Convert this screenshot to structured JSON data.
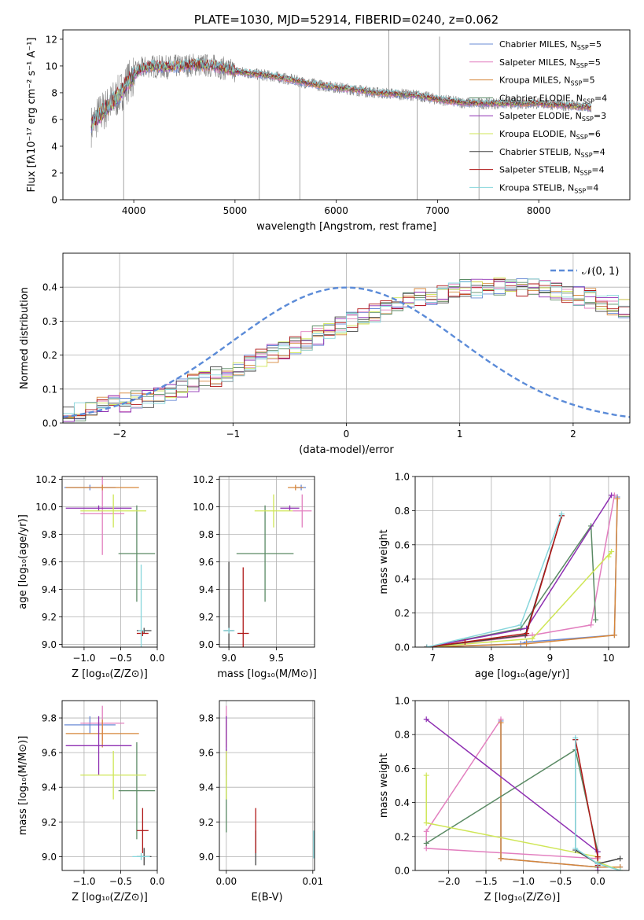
{
  "colors": {
    "Chabrier MILES": "#6a8bd6",
    "Salpeter MILES": "#e27fbf",
    "Kroupa MILES": "#d6863a",
    "Chabrier ELODIE": "#5a8a64",
    "Salpeter ELODIE": "#8e2fb2",
    "Kroupa ELODIE": "#cfe656",
    "Chabrier STELIB": "#444444",
    "Salpeter STELIB": "#b01818",
    "Kroupa STELIB": "#86d6dc"
  },
  "chart_data": [
    {
      "id": "spectrum",
      "type": "line",
      "title": "PLATE=1030, MJD=52914, FIBERID=0240, z=0.062",
      "xlabel": "wavelength [Angstrom, rest frame]",
      "ylabel": "Flux [fλ10⁻¹⁷ erg cm⁻² s⁻¹ A⁻¹]",
      "xlim": [
        3300,
        8900
      ],
      "ylim": [
        0,
        12.7
      ],
      "xticks": [
        4000,
        5000,
        6000,
        7000,
        8000
      ],
      "yticks": [
        0,
        2,
        4,
        6,
        8,
        10,
        12
      ],
      "grid": false,
      "legend_position": "top-right",
      "legend": [
        {
          "name": "Chabrier MILES",
          "label": "Chabrier MILES, N",
          "sub": "SSP",
          "n": "=5"
        },
        {
          "name": "Salpeter MILES",
          "label": "Salpeter MILES, N",
          "sub": "SSP",
          "n": "=5"
        },
        {
          "name": "Kroupa MILES",
          "label": "Kroupa MILES, N",
          "sub": "SSP",
          "n": "=5"
        },
        {
          "name": "Chabrier ELODIE",
          "label": "Chabrier ELODIE, N",
          "sub": "SSP",
          "n": "=4"
        },
        {
          "name": "Salpeter ELODIE",
          "label": "Salpeter ELODIE, N",
          "sub": "SSP",
          "n": "=3"
        },
        {
          "name": "Kroupa ELODIE",
          "label": "Kroupa ELODIE, N",
          "sub": "SSP",
          "n": "=6"
        },
        {
          "name": "Chabrier STELIB",
          "label": "Chabrier STELIB, N",
          "sub": "SSP",
          "n": "=4"
        },
        {
          "name": "Salpeter STELIB",
          "label": "Salpeter STELIB, N",
          "sub": "SSP",
          "n": "=4"
        },
        {
          "name": "Kroupa STELIB",
          "label": "Kroupa STELIB, N",
          "sub": "SSP",
          "n": "=4"
        }
      ],
      "data_continuum": {
        "x": [
          3580,
          3650,
          3750,
          3850,
          3950,
          4050,
          4150,
          4300,
          4450,
          4600,
          4800,
          5000,
          5200,
          5400,
          5600,
          5800,
          6000,
          6200,
          6400,
          6600,
          6800,
          7000,
          7200,
          7400,
          7600,
          7800,
          8000,
          8200,
          8400,
          8520
        ],
        "y": [
          5.5,
          6.3,
          7.0,
          7.8,
          8.9,
          9.7,
          10.0,
          9.9,
          10.0,
          10.1,
          10.0,
          9.6,
          9.4,
          9.2,
          8.9,
          8.6,
          8.4,
          8.2,
          8.0,
          7.9,
          7.8,
          7.5,
          7.3,
          7.2,
          7.2,
          7.2,
          7.2,
          7.1,
          6.95,
          6.9
        ]
      },
      "data_spikes": [
        {
          "x": 3900,
          "y": 0.0
        },
        {
          "x": 5240,
          "y": 0.0
        },
        {
          "x": 5640,
          "y": 0.0
        },
        {
          "x": 6520,
          "y": 12.7
        },
        {
          "x": 6800,
          "y": 0.0
        },
        {
          "x": 7020,
          "y": 12.2
        },
        {
          "x": 7410,
          "y": 0.0
        }
      ]
    },
    {
      "id": "residuals",
      "type": "step",
      "xlabel": "(data-model)/error",
      "ylabel": "Normed distribution",
      "xlim": [
        -2.5,
        2.5
      ],
      "ylim": [
        0,
        0.5
      ],
      "xticks": [
        -2,
        -1,
        0,
        1,
        2
      ],
      "yticks": [
        0.0,
        0.1,
        0.2,
        0.3,
        0.4
      ],
      "grid": true,
      "legend_position": "top-right",
      "legend": [
        "𝒩(0, 1)"
      ],
      "gaussian": {
        "mean": 0,
        "sigma": 1
      },
      "bin_edges_start": -2.5,
      "bin_width": 0.1,
      "base_profile": [
        0.032,
        0.036,
        0.041,
        0.047,
        0.053,
        0.06,
        0.067,
        0.075,
        0.084,
        0.093,
        0.103,
        0.114,
        0.125,
        0.137,
        0.149,
        0.162,
        0.175,
        0.188,
        0.202,
        0.216,
        0.23,
        0.244,
        0.258,
        0.272,
        0.286,
        0.299,
        0.312,
        0.325,
        0.337,
        0.348,
        0.358,
        0.367,
        0.375,
        0.382,
        0.388,
        0.393,
        0.396,
        0.398,
        0.399,
        0.399,
        0.398,
        0.396,
        0.393,
        0.388,
        0.382,
        0.375,
        0.367,
        0.358,
        0.348,
        0.337,
        0.325,
        0.312,
        0.299,
        0.286,
        0.272,
        0.258,
        0.244,
        0.23,
        0.216,
        0.202,
        0.188,
        0.175,
        0.162,
        0.149,
        0.137,
        0.125,
        0.114,
        0.103,
        0.093,
        0.084,
        0.075,
        0.067,
        0.06,
        0.053,
        0.047,
        0.041,
        0.036,
        0.032,
        0.029,
        0.027
      ]
    },
    {
      "id": "age-vs-Z",
      "type": "errorbar",
      "xlabel": "Z [log₁₀(Z/Z⊙)]",
      "ylabel": "age  [log₁₀(age/yr)]",
      "xlim": [
        -1.3,
        0.0
      ],
      "ylim": [
        8.98,
        10.22
      ],
      "xticks": [
        -1.0,
        -0.5,
        0.0
      ],
      "xticklabels": [
        "−1.0",
        "−0.5",
        "0.0"
      ],
      "yticks": [
        9.0,
        9.2,
        9.4,
        9.6,
        9.8,
        10.0,
        10.2
      ],
      "grid": true,
      "points": [
        {
          "series": "Chabrier MILES",
          "x": -0.92,
          "y": 10.14,
          "xerr": 0.35,
          "yerr": 0.02
        },
        {
          "series": "Salpeter MILES",
          "x": -0.75,
          "y": 9.95,
          "xerr": 0.3,
          "yerr": 0.3
        },
        {
          "series": "Kroupa MILES",
          "x": -0.75,
          "y": 10.14,
          "xerr": 0.5,
          "yerr": 0.02
        },
        {
          "series": "Chabrier ELODIE",
          "x": -0.28,
          "y": 9.66,
          "xerr": 0.25,
          "yerr": 0.35
        },
        {
          "series": "Salpeter ELODIE",
          "x": -0.8,
          "y": 9.99,
          "xerr": 0.45,
          "yerr": 0.02
        },
        {
          "series": "Kroupa ELODIE",
          "x": -0.6,
          "y": 9.97,
          "xerr": 0.45,
          "yerr": 0.12
        },
        {
          "series": "Chabrier STELIB",
          "x": -0.18,
          "y": 9.1,
          "xerr": 0.1,
          "yerr": 0.02
        },
        {
          "series": "Salpeter STELIB",
          "x": -0.2,
          "y": 9.08,
          "xerr": 0.08,
          "yerr": 0.02
        },
        {
          "series": "Kroupa STELIB",
          "x": -0.22,
          "y": 9.1,
          "xerr": 0.04,
          "yerr": 0.48
        }
      ]
    },
    {
      "id": "age-vs-mass",
      "type": "errorbar",
      "xlabel": "mass [log₁₀(M/M⊙)]",
      "ylabel": "",
      "xlim": [
        8.9,
        9.9
      ],
      "ylim": [
        8.98,
        10.22
      ],
      "xticks": [
        9.0,
        9.5
      ],
      "yticks": [
        9.0,
        9.2,
        9.4,
        9.6,
        9.8,
        10.0,
        10.2
      ],
      "grid": true,
      "points": [
        {
          "series": "Chabrier MILES",
          "x": 9.76,
          "y": 10.14,
          "xerr": 0.05,
          "yerr": 0.02
        },
        {
          "series": "Salpeter MILES",
          "x": 9.77,
          "y": 9.97,
          "xerr": 0.1,
          "yerr": 0.12
        },
        {
          "series": "Kroupa MILES",
          "x": 9.7,
          "y": 10.14,
          "xerr": 0.08,
          "yerr": 0.02
        },
        {
          "series": "Chabrier ELODIE",
          "x": 9.38,
          "y": 9.66,
          "xerr": 0.3,
          "yerr": 0.35
        },
        {
          "series": "Salpeter ELODIE",
          "x": 9.64,
          "y": 9.99,
          "xerr": 0.1,
          "yerr": 0.02
        },
        {
          "series": "Kroupa ELODIE",
          "x": 9.47,
          "y": 9.97,
          "xerr": 0.2,
          "yerr": 0.12
        },
        {
          "series": "Chabrier STELIB",
          "x": 9.0,
          "y": 9.1,
          "xerr": 0.05,
          "yerr": 0.5
        },
        {
          "series": "Salpeter STELIB",
          "x": 9.15,
          "y": 9.08,
          "xerr": 0.06,
          "yerr": 0.48
        },
        {
          "series": "Kroupa STELIB",
          "x": 9.0,
          "y": 9.1,
          "xerr": 0.06,
          "yerr": 0.02
        }
      ]
    },
    {
      "id": "mass-weight-vs-age",
      "type": "line",
      "xlabel": "age  [log₁₀(age/yr)]",
      "ylabel": "mass weight",
      "xlim": [
        6.7,
        10.35
      ],
      "ylim": [
        0.0,
        1.0
      ],
      "xticks": [
        7,
        8,
        9,
        10
      ],
      "yticks": [
        0.0,
        0.2,
        0.4,
        0.6,
        0.8,
        1.0
      ],
      "grid": true,
      "series": [
        {
          "name": "Chabrier MILES",
          "x": [
            6.9,
            8.5,
            8.6,
            10.1,
            10.15
          ],
          "y": [
            0.0,
            0.02,
            0.03,
            0.07,
            0.88
          ]
        },
        {
          "name": "Salpeter MILES",
          "x": [
            6.9,
            8.7,
            9.7,
            10.1
          ],
          "y": [
            0.0,
            0.07,
            0.13,
            0.89
          ]
        },
        {
          "name": "Kroupa MILES",
          "x": [
            6.9,
            8.6,
            10.1,
            10.15
          ],
          "y": [
            0.0,
            0.02,
            0.07,
            0.87
          ]
        },
        {
          "name": "Chabrier ELODIE",
          "x": [
            6.9,
            8.5,
            9.7,
            9.78
          ],
          "y": [
            0.0,
            0.11,
            0.71,
            0.16
          ]
        },
        {
          "name": "Salpeter ELODIE",
          "x": [
            6.9,
            8.6,
            10.05
          ],
          "y": [
            0.0,
            0.11,
            0.89
          ]
        },
        {
          "name": "Kroupa ELODIE",
          "x": [
            6.9,
            8.7,
            10.05,
            10.0
          ],
          "y": [
            0.0,
            0.05,
            0.56,
            0.53
          ]
        },
        {
          "name": "Chabrier STELIB",
          "x": [
            6.9,
            8.58,
            9.2
          ],
          "y": [
            0.0,
            0.07,
            0.77
          ]
        },
        {
          "name": "Salpeter STELIB",
          "x": [
            6.9,
            7.55,
            8.6,
            9.2
          ],
          "y": [
            0.0,
            0.03,
            0.08,
            0.77
          ]
        },
        {
          "name": "Kroupa STELIB",
          "x": [
            6.9,
            8.5,
            9.2
          ],
          "y": [
            0.0,
            0.13,
            0.78
          ]
        }
      ]
    },
    {
      "id": "mass-vs-Z",
      "type": "errorbar",
      "xlabel": "Z [log₁₀(Z/Z⊙)]",
      "ylabel": "mass [log₁₀(M/M⊙)]",
      "xlim": [
        -1.3,
        0.0
      ],
      "ylim": [
        8.92,
        9.9
      ],
      "xticks": [
        -1.0,
        -0.5,
        0.0
      ],
      "xticklabels": [
        "−1.0",
        "−0.5",
        "0.0"
      ],
      "yticks": [
        9.0,
        9.2,
        9.4,
        9.6,
        9.8
      ],
      "grid": true,
      "points": [
        {
          "series": "Chabrier MILES",
          "x": -0.92,
          "y": 9.76,
          "xerr": 0.35,
          "yerr": 0.05
        },
        {
          "series": "Salpeter MILES",
          "x": -0.75,
          "y": 9.77,
          "xerr": 0.3,
          "yerr": 0.1
        },
        {
          "series": "Kroupa MILES",
          "x": -0.75,
          "y": 9.71,
          "xerr": 0.5,
          "yerr": 0.08
        },
        {
          "series": "Chabrier ELODIE",
          "x": -0.28,
          "y": 9.38,
          "xerr": 0.25,
          "yerr": 0.28
        },
        {
          "series": "Salpeter ELODIE",
          "x": -0.8,
          "y": 9.64,
          "xerr": 0.45,
          "yerr": 0.17
        },
        {
          "series": "Kroupa ELODIE",
          "x": -0.6,
          "y": 9.47,
          "xerr": 0.45,
          "yerr": 0.14
        },
        {
          "series": "Chabrier STELIB",
          "x": -0.18,
          "y": 9.0,
          "xerr": 0.1,
          "yerr": 0.05
        },
        {
          "series": "Salpeter STELIB",
          "x": -0.2,
          "y": 9.15,
          "xerr": 0.08,
          "yerr": 0.13
        },
        {
          "series": "Kroupa STELIB",
          "x": -0.22,
          "y": 9.0,
          "xerr": 0.12,
          "yerr": 0.02
        }
      ]
    },
    {
      "id": "mass-vs-EBV",
      "type": "errorbar",
      "xlabel": "E(B-V)",
      "ylabel": "",
      "xlim": [
        -0.0008,
        0.0102
      ],
      "ylim": [
        8.92,
        9.9
      ],
      "xticks": [
        0.0,
        0.01
      ],
      "xticklabels": [
        "0.00",
        "0.01"
      ],
      "yticks": [
        9.0,
        9.2,
        9.4,
        9.6,
        9.8
      ],
      "grid": true,
      "points": [
        {
          "series": "Chabrier MILES",
          "x": 0.0,
          "y": 9.76,
          "xerr": 0.0,
          "yerr": 0.05
        },
        {
          "series": "Salpeter MILES",
          "x": 0.0,
          "y": 9.77,
          "xerr": 0.0,
          "yerr": 0.1
        },
        {
          "series": "Kroupa MILES",
          "x": 0.0,
          "y": 9.71,
          "xerr": 0.0,
          "yerr": 0.08
        },
        {
          "series": "Chabrier ELODIE",
          "x": 0.0,
          "y": 9.38,
          "xerr": 0.0,
          "yerr": 0.24
        },
        {
          "series": "Salpeter ELODIE",
          "x": 0.0,
          "y": 9.64,
          "xerr": 0.0,
          "yerr": 0.17
        },
        {
          "series": "Kroupa ELODIE",
          "x": 0.0,
          "y": 9.47,
          "xerr": 0.0,
          "yerr": 0.14
        },
        {
          "series": "Chabrier STELIB",
          "x": 0.0034,
          "y": 9.05,
          "xerr": 0.0,
          "yerr": 0.1
        },
        {
          "series": "Salpeter STELIB",
          "x": 0.0034,
          "y": 9.15,
          "xerr": 0.0,
          "yerr": 0.13
        },
        {
          "series": "Kroupa STELIB",
          "x": 0.0101,
          "y": 9.07,
          "xerr": 0.0,
          "yerr": 0.08
        }
      ]
    },
    {
      "id": "mass-weight-vs-Z",
      "type": "line",
      "xlabel": "Z [log₁₀(Z/Z⊙)]",
      "ylabel": "mass weight",
      "xlim": [
        -2.45,
        0.42
      ],
      "ylim": [
        0.0,
        1.0
      ],
      "xticks": [
        -2.0,
        -1.5,
        -1.0,
        -0.5,
        0.0
      ],
      "xticklabels": [
        "−2.0",
        "−1.5",
        "−1.0",
        "−0.5",
        "0.0"
      ],
      "yticks": [
        0.0,
        0.2,
        0.4,
        0.6,
        0.8,
        1.0
      ],
      "grid": true,
      "series": [
        {
          "name": "Chabrier MILES",
          "x": [
            -1.3,
            -1.3,
            0.0,
            0.3
          ],
          "y": [
            0.88,
            0.07,
            0.02,
            0.02
          ]
        },
        {
          "name": "Salpeter MILES",
          "x": [
            -1.3,
            -2.3,
            -2.3,
            0.0,
            0.0
          ],
          "y": [
            0.89,
            0.23,
            0.13,
            0.07,
            0.0
          ]
        },
        {
          "name": "Kroupa MILES",
          "x": [
            -1.3,
            -1.3,
            0.0,
            0.3
          ],
          "y": [
            0.87,
            0.07,
            0.02,
            0.02
          ]
        },
        {
          "name": "Chabrier ELODIE",
          "x": [
            -2.3,
            -0.3,
            0.0,
            0.0
          ],
          "y": [
            0.16,
            0.71,
            0.11,
            0.02
          ]
        },
        {
          "name": "Salpeter ELODIE",
          "x": [
            -2.3,
            0.0,
            0.0
          ],
          "y": [
            0.89,
            0.11,
            0.0
          ]
        },
        {
          "name": "Kroupa ELODIE",
          "x": [
            -2.3,
            -2.3,
            0.0,
            0.0,
            0.3
          ],
          "y": [
            0.56,
            0.28,
            0.08,
            0.05,
            0.0
          ]
        },
        {
          "name": "Chabrier STELIB",
          "x": [
            -0.3,
            -0.3,
            0.0,
            0.3
          ],
          "y": [
            0.77,
            0.12,
            0.04,
            0.07
          ]
        },
        {
          "name": "Salpeter STELIB",
          "x": [
            -0.3,
            0.0,
            0.0
          ],
          "y": [
            0.77,
            0.08,
            0.03
          ]
        },
        {
          "name": "Kroupa STELIB",
          "x": [
            -0.3,
            -0.3,
            0.0,
            0.3
          ],
          "y": [
            0.78,
            0.13,
            0.04,
            0.0
          ]
        }
      ]
    }
  ]
}
